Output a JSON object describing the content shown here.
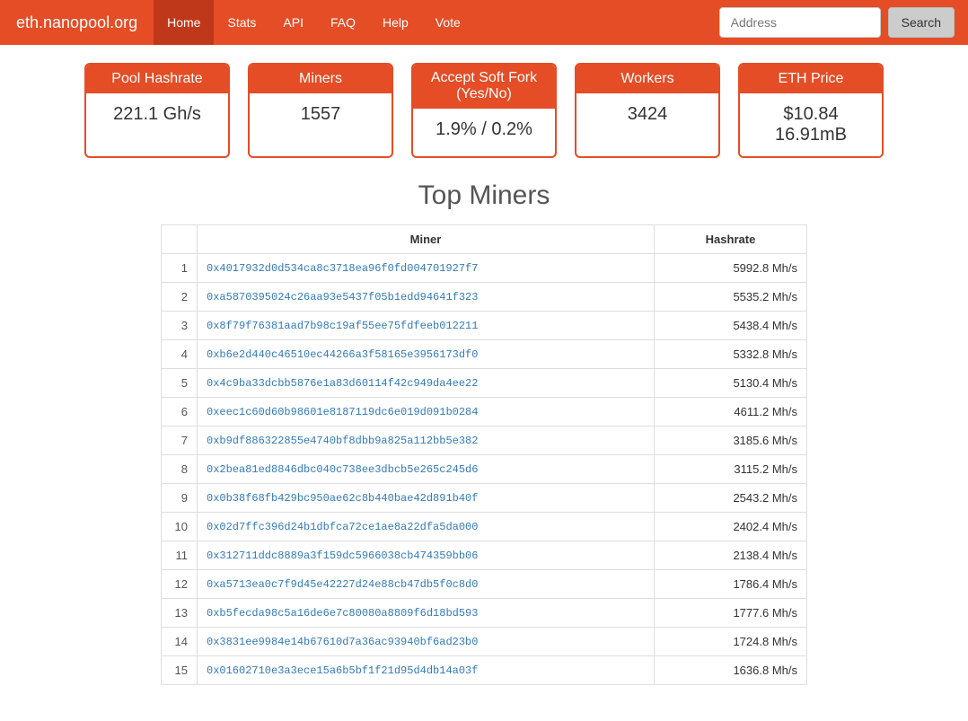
{
  "brand": "eth.nanopool.org",
  "nav": {
    "items": [
      {
        "label": "Home",
        "active": true
      },
      {
        "label": "Stats",
        "active": false
      },
      {
        "label": "API",
        "active": false
      },
      {
        "label": "FAQ",
        "active": false
      },
      {
        "label": "Help",
        "active": false
      },
      {
        "label": "Vote",
        "active": false
      }
    ]
  },
  "search": {
    "placeholder": "Address",
    "button": "Search"
  },
  "stats": {
    "cards": [
      {
        "title": "Pool Hashrate",
        "value": "221.1 Gh/s"
      },
      {
        "title": "Miners",
        "value": "1557"
      },
      {
        "title": "Accept Soft Fork (Yes/No)",
        "value": "1.9% / 0.2%"
      },
      {
        "title": "Workers",
        "value": "3424"
      },
      {
        "title": "ETH Price",
        "value": "$10.84 16.91mB"
      }
    ]
  },
  "section_title": "Top Miners",
  "table": {
    "columns": [
      "",
      "Miner",
      "Hashrate"
    ],
    "rows": [
      {
        "idx": "1",
        "miner": "0x4017932d0d534ca8c3718ea96f0fd004701927f7",
        "hashrate": "5992.8 Mh/s"
      },
      {
        "idx": "2",
        "miner": "0xa5870395024c26aa93e5437f05b1edd94641f323",
        "hashrate": "5535.2 Mh/s"
      },
      {
        "idx": "3",
        "miner": "0x8f79f76381aad7b98c19af55ee75fdfeeb012211",
        "hashrate": "5438.4 Mh/s"
      },
      {
        "idx": "4",
        "miner": "0xb6e2d440c46510ec44266a3f58165e3956173df0",
        "hashrate": "5332.8 Mh/s"
      },
      {
        "idx": "5",
        "miner": "0x4c9ba33dcbb5876e1a83d60114f42c949da4ee22",
        "hashrate": "5130.4 Mh/s"
      },
      {
        "idx": "6",
        "miner": "0xeec1c60d60b98601e8187119dc6e019d091b0284",
        "hashrate": "4611.2 Mh/s"
      },
      {
        "idx": "7",
        "miner": "0xb9df886322855e4740bf8dbb9a825a112bb5e382",
        "hashrate": "3185.6 Mh/s"
      },
      {
        "idx": "8",
        "miner": "0x2bea81ed8846dbc040c738ee3dbcb5e265c245d6",
        "hashrate": "3115.2 Mh/s"
      },
      {
        "idx": "9",
        "miner": "0x0b38f68fb429bc950ae62c8b440bae42d891b40f",
        "hashrate": "2543.2 Mh/s"
      },
      {
        "idx": "10",
        "miner": "0x02d7ffc396d24b1dbfca72ce1ae8a22dfa5da000",
        "hashrate": "2402.4 Mh/s"
      },
      {
        "idx": "11",
        "miner": "0x312711ddc8889a3f159dc5966038cb474359bb06",
        "hashrate": "2138.4 Mh/s"
      },
      {
        "idx": "12",
        "miner": "0xa5713ea0c7f9d45e42227d24e88cb47db5f0c8d0",
        "hashrate": "1786.4 Mh/s"
      },
      {
        "idx": "13",
        "miner": "0xb5fecda98c5a16de6e7c80080a8809f6d18bd593",
        "hashrate": "1777.6 Mh/s"
      },
      {
        "idx": "14",
        "miner": "0x3831ee9984e14b67610d7a36ac93940bf6ad23b0",
        "hashrate": "1724.8 Mh/s"
      },
      {
        "idx": "15",
        "miner": "0x01602710e3a3ece15a6b5bf1f21d95d4db14a03f",
        "hashrate": "1636.8 Mh/s"
      }
    ]
  },
  "colors": {
    "primary": "#e44d26",
    "primary_dark": "#c0381a",
    "link": "#337ab7",
    "border": "#dddddd",
    "text": "#333333"
  }
}
